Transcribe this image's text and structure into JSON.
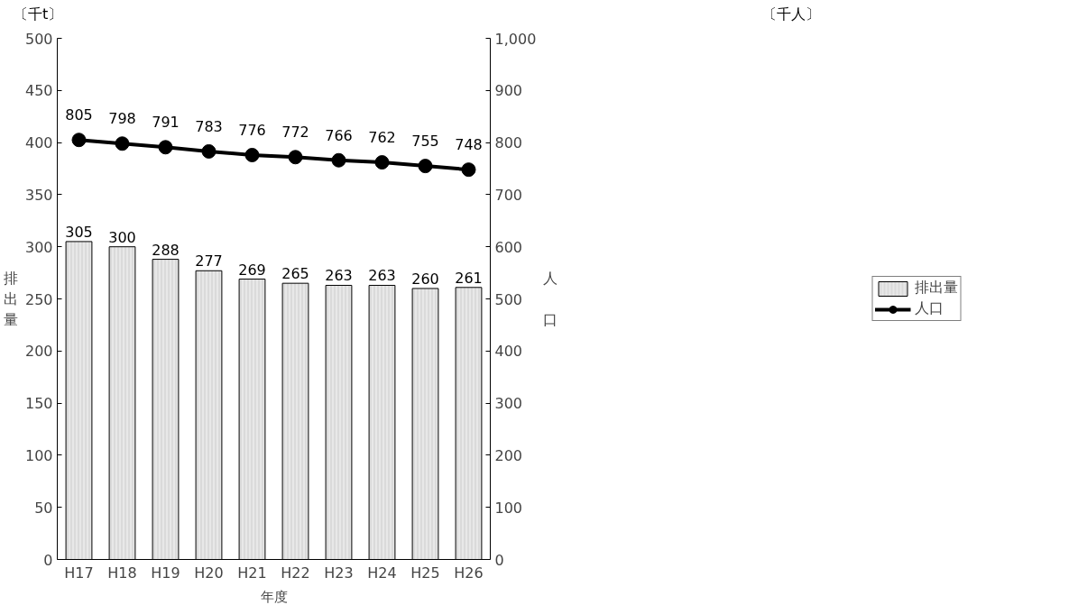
{
  "chart_data": {
    "type": "bar",
    "categories": [
      "H17",
      "H18",
      "H19",
      "H20",
      "H21",
      "H22",
      "H23",
      "H24",
      "H25",
      "H26"
    ],
    "series": [
      {
        "name": "排出量",
        "color": "#e8e8e8",
        "values": [
          305,
          300,
          288,
          277,
          269,
          265,
          263,
          263,
          260,
          261
        ]
      },
      {
        "name": "人口",
        "type": "line",
        "axis": "y2",
        "color": "#000000",
        "values": [
          805,
          798,
          791,
          783,
          776,
          772,
          766,
          762,
          755,
          748
        ]
      }
    ],
    "xlabel": "年度",
    "ylabel": "排出量",
    "y2label": "人口",
    "annotations": [
      "〔千t〕",
      "〔千人〕"
    ],
    "ylim": [
      0,
      500
    ],
    "yticks": [
      0,
      50,
      100,
      150,
      200,
      250,
      300,
      350,
      400,
      450,
      500
    ],
    "y2lim": [
      0,
      1000
    ],
    "y2ticks": [
      0,
      100,
      200,
      300,
      400,
      500,
      600,
      700,
      800,
      900,
      {
        "value": 1000,
        "label": "1,000"
      }
    ],
    "data_labels": true,
    "legend": "right",
    "grid": false,
    "marker": "circle",
    "line_style": "solid"
  }
}
